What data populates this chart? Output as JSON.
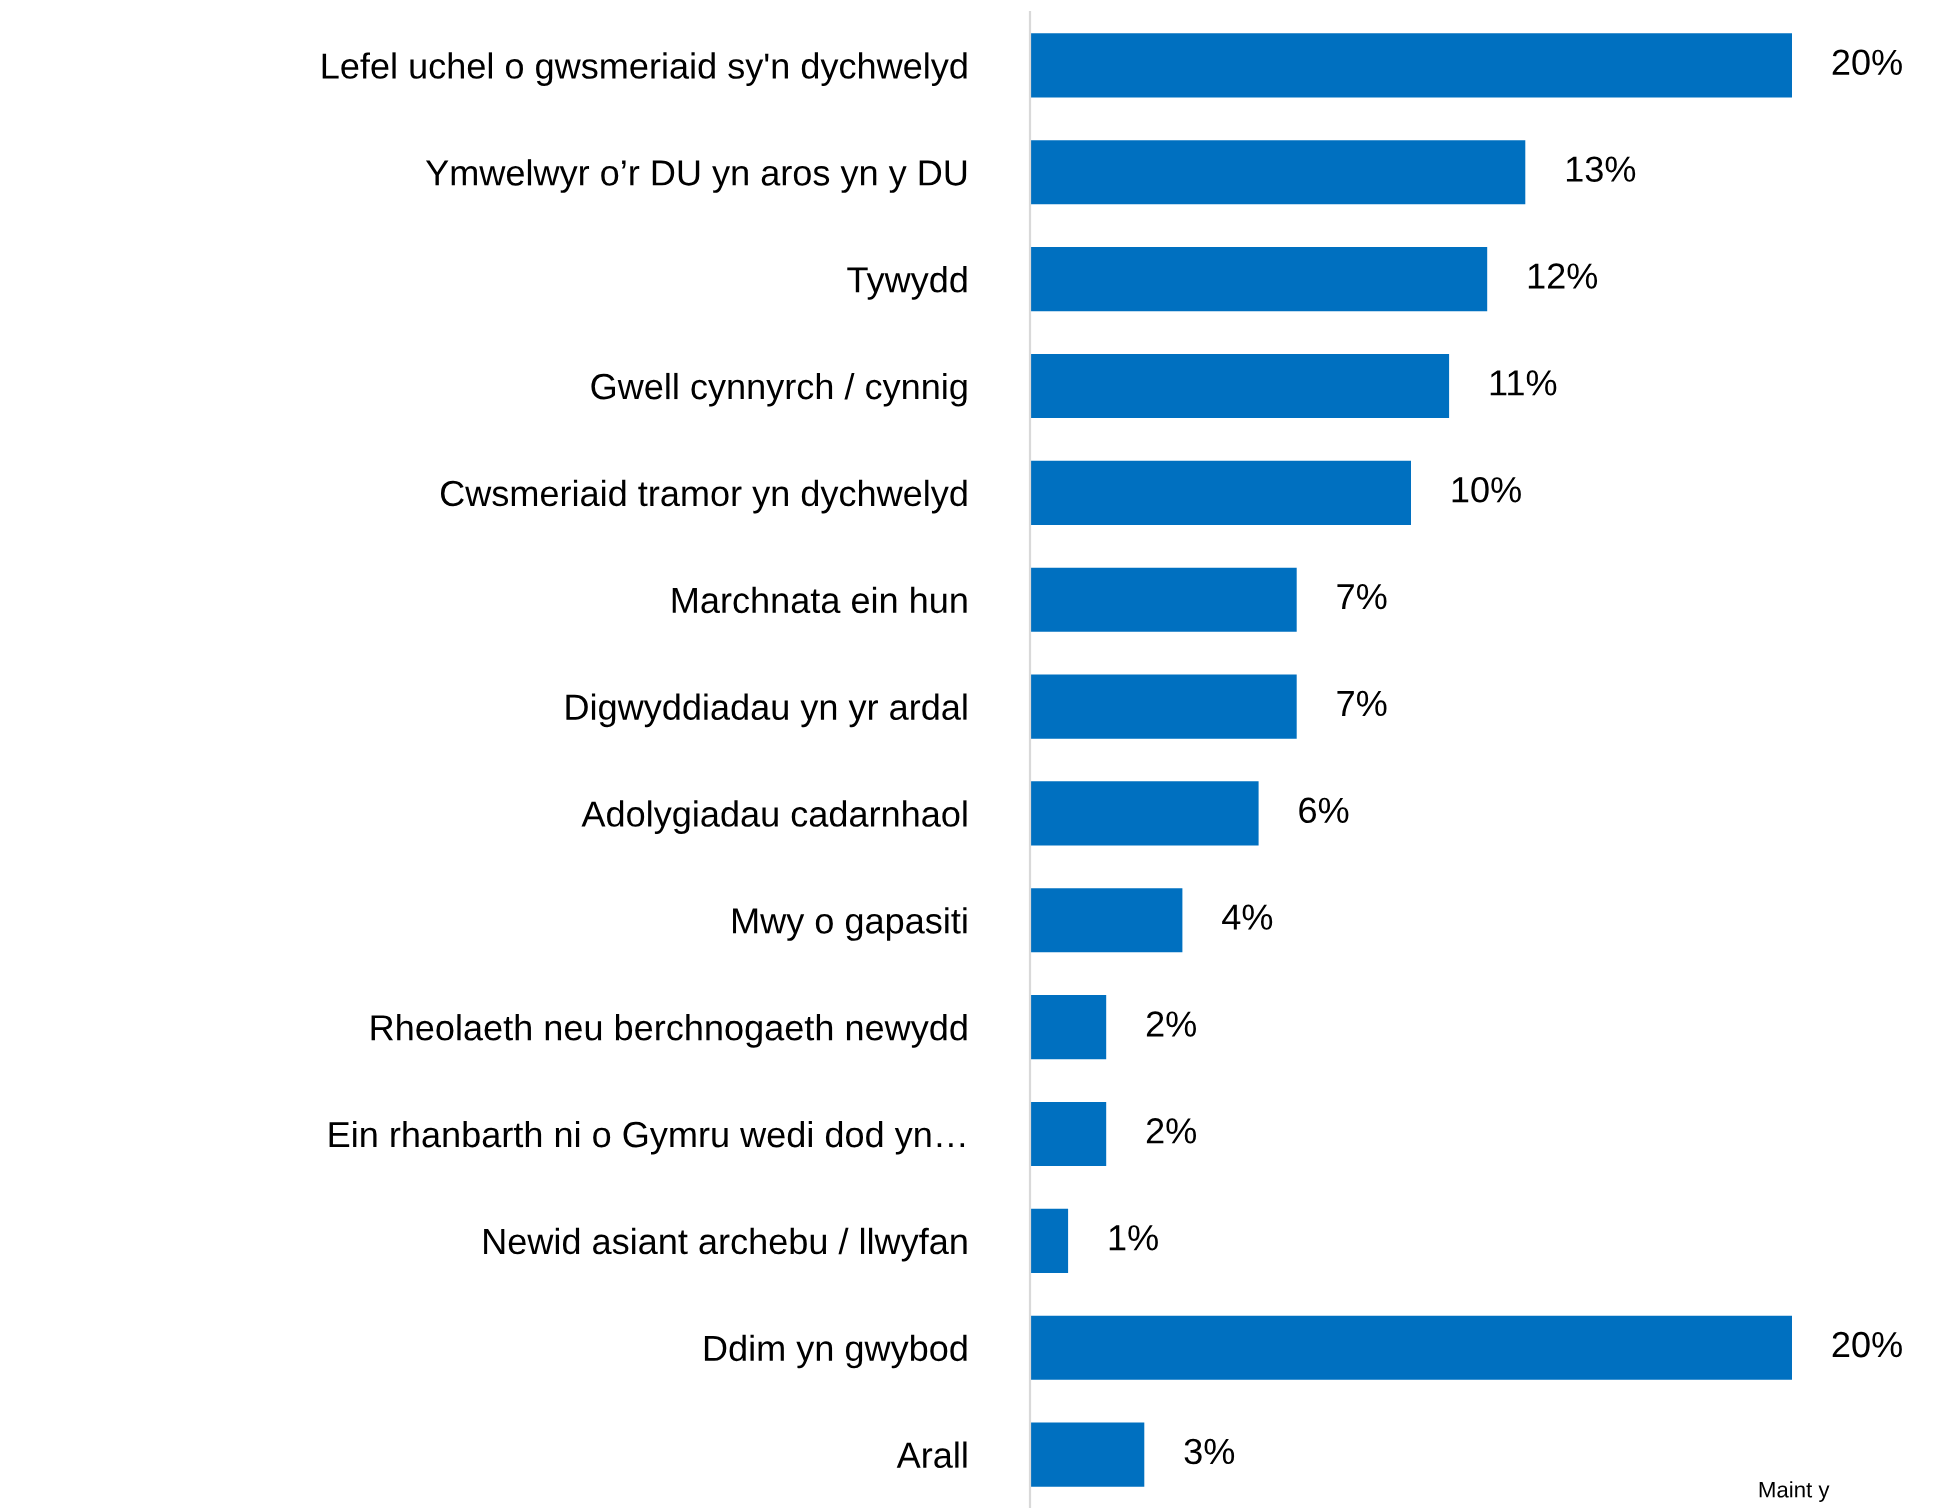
{
  "chart_data": {
    "type": "bar",
    "orientation": "horizontal",
    "categories": [
      "Lefel uchel o gwsmeriaid sy'n dychwelyd",
      "Ymwelwyr o’r DU yn aros yn y DU",
      "Tywydd",
      "Gwell cynnyrch / cynnig",
      "Cwsmeriaid tramor yn dychwelyd",
      "Marchnata ein hun",
      "Digwyddiadau yn yr ardal",
      "Adolygiadau cadarnhaol",
      "Mwy o gapasiti",
      "Rheolaeth neu berchnogaeth newydd",
      "Ein rhanbarth ni o Gymru wedi dod yn…",
      "Newid asiant archebu / llwyfan",
      "Ddim yn gwybod",
      "Arall"
    ],
    "values": [
      20,
      13,
      12,
      11,
      10,
      7,
      7,
      6,
      4,
      2,
      2,
      1,
      20,
      3
    ],
    "value_labels": [
      "20%",
      "13%",
      "12%",
      "11%",
      "10%",
      "7%",
      "7%",
      "6%",
      "4%",
      "2%",
      "2%",
      "1%",
      "20%",
      "3%"
    ],
    "color": "#0070c0",
    "annotations": [
      "Maint y"
    ],
    "grid": false,
    "legend": false
  }
}
